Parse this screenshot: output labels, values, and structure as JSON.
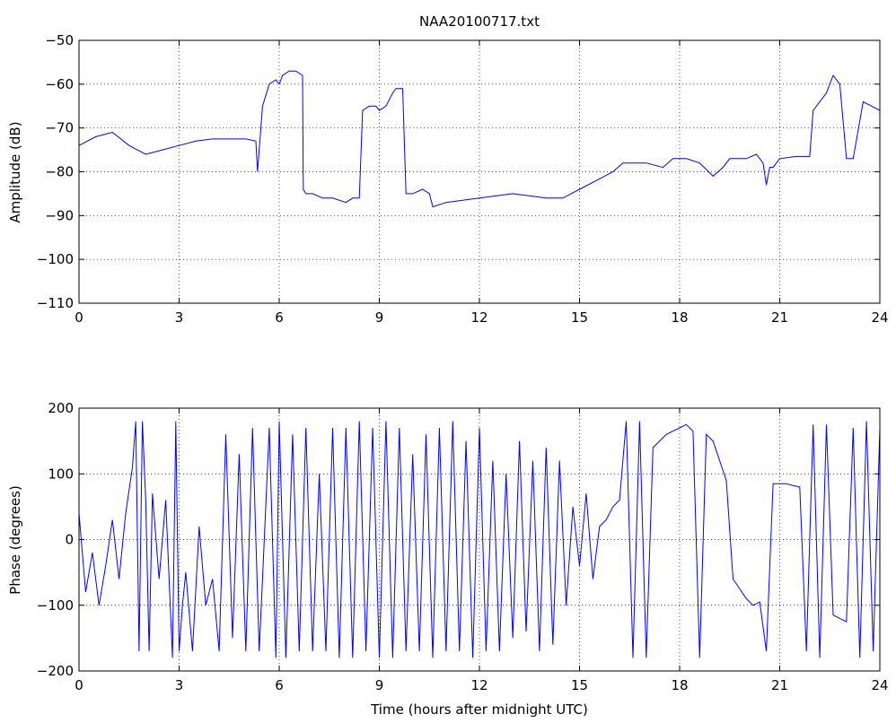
{
  "chart_data": [
    {
      "type": "line",
      "title": "NAA20100717.txt",
      "xlabel": "",
      "ylabel": "Amplitude (dB)",
      "xlim": [
        0,
        24
      ],
      "ylim": [
        -110,
        -50
      ],
      "xticks": [
        0,
        3,
        6,
        9,
        12,
        15,
        18,
        21,
        24
      ],
      "yticks": [
        -50,
        -60,
        -70,
        -80,
        -90,
        -100,
        -110
      ],
      "grid": true,
      "line_color": "#0000ff",
      "series": [
        {
          "x": [
            0,
            0.5,
            1.0,
            1.5,
            2.0,
            2.5,
            3.0,
            3.5,
            4.0,
            4.5,
            5.0,
            5.3,
            5.35,
            5.5,
            5.7,
            5.9,
            6.0,
            6.1,
            6.3,
            6.5,
            6.7,
            6.72,
            6.8,
            7.0,
            7.3,
            7.6,
            8.0,
            8.2,
            8.4,
            8.5,
            8.7,
            8.9,
            9.0,
            9.2,
            9.4,
            9.5,
            9.7,
            9.8,
            10.0,
            10.3,
            10.5,
            10.6,
            11.0,
            12.0,
            13.0,
            14.0,
            14.5,
            15.0,
            15.5,
            16.0,
            16.3,
            17.0,
            17.5,
            17.8,
            18.2,
            18.6,
            19.0,
            19.3,
            19.5,
            20.0,
            20.3,
            20.5,
            20.6,
            20.7,
            20.8,
            21.0,
            21.5,
            21.9,
            22.0,
            22.2,
            22.4,
            22.6,
            22.8,
            23.0,
            23.2,
            23.5,
            24.0
          ],
          "y": [
            -74,
            -72,
            -71,
            -74,
            -76,
            -75,
            -74,
            -73,
            -72.5,
            -72.5,
            -72.5,
            -73,
            -80,
            -65,
            -60,
            -59,
            -60,
            -58,
            -57,
            -57,
            -58,
            -84,
            -85,
            -85,
            -86,
            -86,
            -87,
            -86,
            -86,
            -66,
            -65,
            -65,
            -66,
            -65,
            -62,
            -61,
            -61,
            -85,
            -85,
            -84,
            -85,
            -88,
            -87,
            -86,
            -85,
            -86,
            -86,
            -84,
            -82,
            -80,
            -78,
            -78,
            -79,
            -77,
            -77,
            -78,
            -81,
            -79,
            -77,
            -77,
            -76,
            -78,
            -83,
            -79,
            -79,
            -77,
            -76.5,
            -76.5,
            -66,
            -64,
            -62,
            -58,
            -60,
            -77,
            -77,
            -64,
            -66
          ]
        }
      ]
    },
    {
      "type": "line",
      "title": "",
      "xlabel": "Time (hours after midnight UTC)",
      "ylabel": "Phase (degrees)",
      "xlim": [
        0,
        24
      ],
      "ylim": [
        -200,
        200
      ],
      "xticks": [
        0,
        3,
        6,
        9,
        12,
        15,
        18,
        21,
        24
      ],
      "yticks": [
        200,
        100,
        0,
        -100,
        -200
      ],
      "grid": true,
      "line_color": "#0000ff",
      "series": [
        {
          "x": [
            0,
            0.2,
            0.4,
            0.6,
            0.8,
            1.0,
            1.2,
            1.4,
            1.6,
            1.7,
            1.8,
            1.9,
            2.0,
            2.1,
            2.2,
            2.4,
            2.6,
            2.8,
            2.9,
            3.0,
            3.1,
            3.2,
            3.4,
            3.6,
            3.8,
            4.0,
            4.2,
            4.4,
            4.6,
            4.8,
            5.0,
            5.2,
            5.4,
            5.5,
            5.7,
            5.9,
            6.0,
            6.2,
            6.4,
            6.6,
            6.8,
            7.0,
            7.2,
            7.4,
            7.6,
            7.8,
            8.0,
            8.2,
            8.4,
            8.6,
            8.8,
            9.0,
            9.2,
            9.4,
            9.6,
            9.8,
            10.0,
            10.2,
            10.4,
            10.6,
            10.8,
            11.0,
            11.2,
            11.4,
            11.6,
            11.8,
            12.0,
            12.2,
            12.4,
            12.6,
            12.8,
            13.0,
            13.2,
            13.4,
            13.6,
            13.8,
            14.0,
            14.2,
            14.4,
            14.6,
            14.8,
            15.0,
            15.2,
            15.4,
            15.6,
            15.8,
            16.0,
            16.2,
            16.4,
            16.6,
            16.8,
            17.0,
            17.2,
            17.4,
            17.6,
            17.8,
            18.0,
            18.2,
            18.4,
            18.6,
            18.8,
            19.0,
            19.2,
            19.4,
            19.6,
            19.8,
            20.0,
            20.2,
            20.4,
            20.6,
            20.8,
            21.0,
            21.2,
            21.4,
            21.6,
            21.8,
            22.0,
            22.2,
            22.4,
            22.6,
            22.8,
            23.0,
            23.2,
            23.4,
            23.6,
            23.8,
            24.0
          ],
          "y": [
            40,
            -80,
            -20,
            -100,
            -40,
            30,
            -60,
            40,
            110,
            180,
            -170,
            180,
            60,
            -170,
            70,
            -60,
            60,
            -180,
            180,
            -170,
            -100,
            -50,
            -170,
            20,
            -100,
            -60,
            -170,
            160,
            -150,
            130,
            -170,
            170,
            -170,
            -60,
            170,
            -180,
            180,
            -180,
            160,
            -170,
            170,
            -170,
            100,
            -170,
            170,
            -180,
            170,
            -180,
            180,
            -170,
            170,
            -180,
            180,
            -180,
            170,
            -170,
            130,
            -170,
            160,
            -180,
            170,
            -170,
            180,
            -170,
            150,
            -180,
            170,
            -170,
            120,
            -170,
            100,
            -150,
            150,
            -140,
            120,
            -170,
            140,
            -160,
            120,
            -100,
            50,
            -40,
            70,
            -60,
            20,
            30,
            50,
            60,
            180,
            -180,
            180,
            -180,
            140,
            150,
            160,
            165,
            170,
            175,
            165,
            -180,
            160,
            150,
            120,
            90,
            -60,
            -75,
            -90,
            -100,
            -95,
            -170,
            85,
            85,
            85,
            82,
            80,
            -170,
            175,
            -180,
            175,
            -115,
            -120,
            -125,
            170,
            -180,
            180,
            -170,
            170
          ]
        }
      ]
    }
  ]
}
